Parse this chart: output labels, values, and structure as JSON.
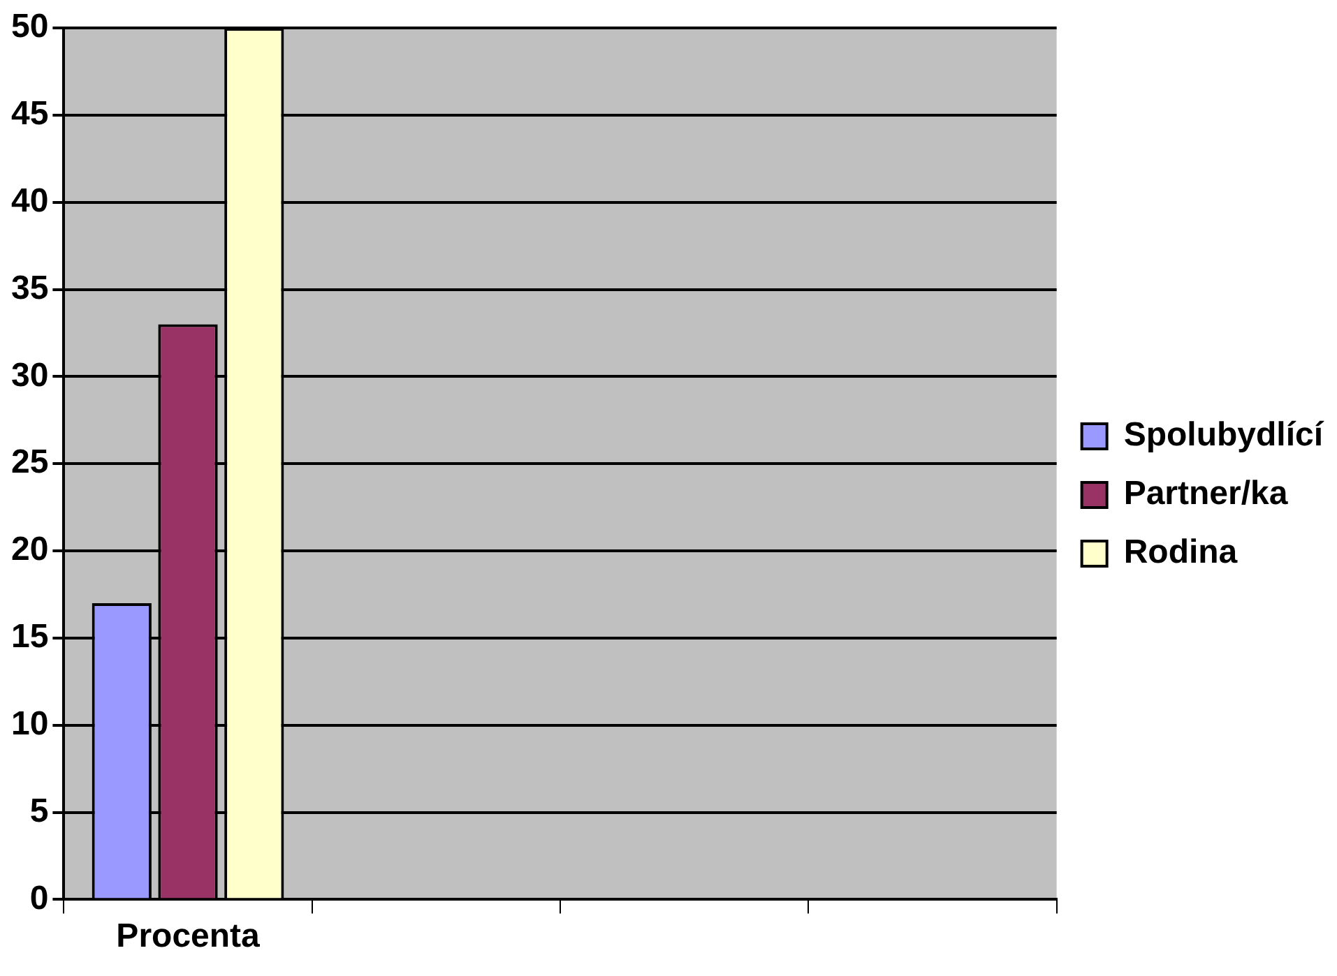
{
  "chart_data": {
    "type": "bar",
    "categories": [
      "Procenta",
      null,
      null,
      null
    ],
    "series": [
      {
        "name": "Spolubydlící",
        "color": "#9999ff",
        "values": [
          17,
          null,
          null,
          null
        ]
      },
      {
        "name": "Partner/ka",
        "color": "#993366",
        "values": [
          33,
          null,
          null,
          null
        ]
      },
      {
        "name": "Rodina",
        "color": "#ffffcc",
        "values": [
          50,
          null,
          null,
          null
        ]
      }
    ],
    "ylim": [
      0,
      50
    ],
    "yticks": [
      0,
      5,
      10,
      15,
      20,
      25,
      30,
      35,
      40,
      45,
      50
    ],
    "grid": "y",
    "legend": "right"
  }
}
